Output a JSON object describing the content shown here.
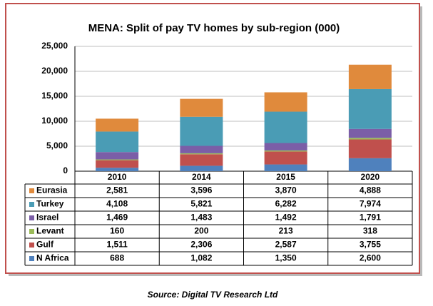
{
  "chart_data": {
    "type": "stacked-bar",
    "title": "MENA: Split of pay TV homes by sub-region (000)",
    "source": "Source: Digital TV Research Ltd",
    "categories": [
      "2010",
      "2014",
      "2015",
      "2020"
    ],
    "series": [
      {
        "name": "Eurasia",
        "color": "#e08a3c",
        "values": [
          2581,
          3596,
          3870,
          4888
        ],
        "value_labels": [
          "2,581",
          "3,596",
          "3,870",
          "4,888"
        ]
      },
      {
        "name": "Turkey",
        "color": "#4a9cb5",
        "values": [
          4108,
          5821,
          6282,
          7974
        ],
        "value_labels": [
          "4,108",
          "5,821",
          "6,282",
          "7,974"
        ]
      },
      {
        "name": "Israel",
        "color": "#7b5ea7",
        "values": [
          1469,
          1483,
          1492,
          1791
        ],
        "value_labels": [
          "1,469",
          "1,483",
          "1,492",
          "1,791"
        ]
      },
      {
        "name": "Levant",
        "color": "#9bbb59",
        "values": [
          160,
          200,
          213,
          318
        ]
      },
      {
        "name": "Gulf",
        "color": "#c0504d",
        "values": [
          1511,
          2306,
          2587,
          3755
        ],
        "value_labels": [
          "1,511",
          "2,306",
          "2,587",
          "3,755"
        ]
      },
      {
        "name": "N Africa",
        "color": "#4f81bd",
        "values": [
          688,
          1082,
          1350,
          2600
        ],
        "value_labels": [
          "688",
          "1,082",
          "1,350",
          "2,600"
        ]
      }
    ],
    "ylim": [
      0,
      25000
    ],
    "yticks": [
      0,
      {
        "value": 5000,
        "label": "5,000"
      },
      {
        "value": 10000,
        "label": "10,000"
      },
      {
        "value": 15000,
        "label": "15,000"
      },
      {
        "value": 20000,
        "label": "20,000"
      },
      {
        "value": 25000,
        "label": "25,000"
      }
    ],
    "grid": true
  }
}
